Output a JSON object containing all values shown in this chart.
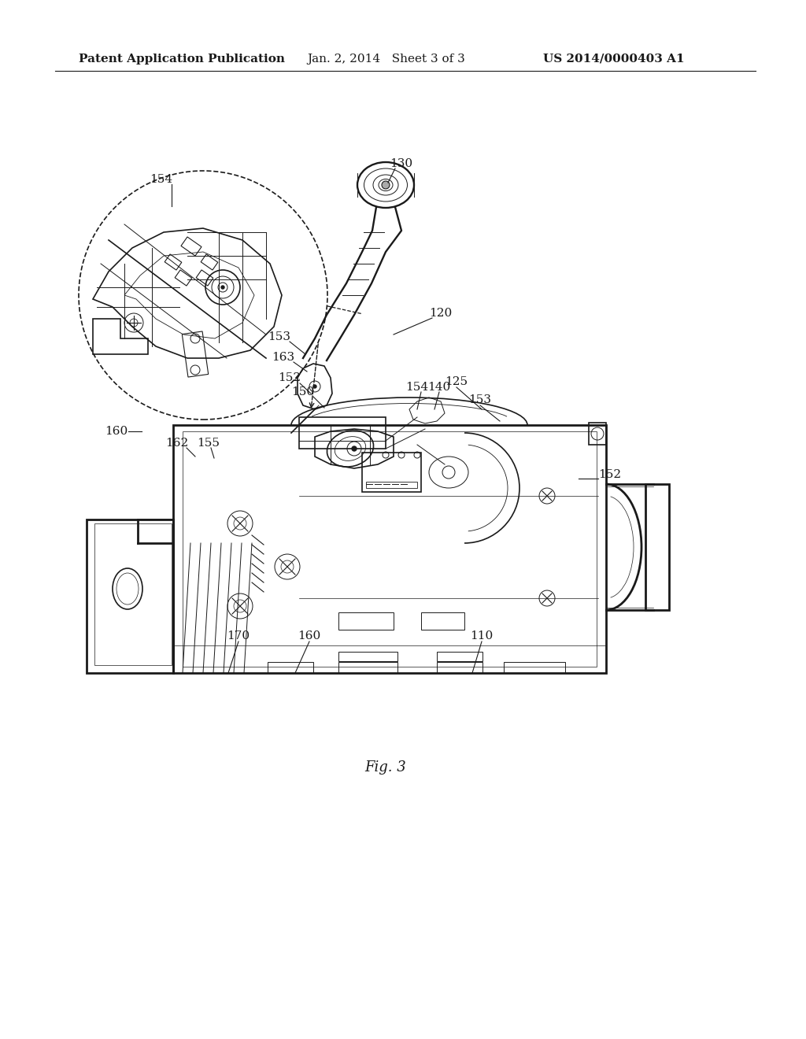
{
  "background_color": "#ffffff",
  "header_left": "Patent Application Publication",
  "header_center": "Jan. 2, 2014   Sheet 3 of 3",
  "header_right": "US 2014/0000403 A1",
  "figure_label": "Fig. 3",
  "line_color": "#1a1a1a",
  "text_color": "#1a1a1a",
  "header_fontsize": 11,
  "label_fontsize": 11,
  "fig_label_fontsize": 13
}
